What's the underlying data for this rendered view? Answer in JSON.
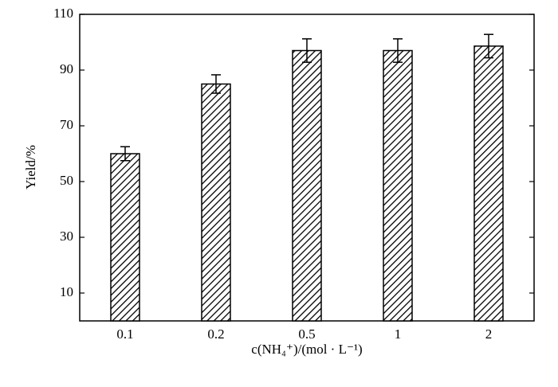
{
  "chart_data": {
    "type": "bar",
    "x_label": "c(NH₄⁺)/(mol · L⁻¹)",
    "y_label": "Yield/%",
    "categories": [
      "0.1",
      "0.2",
      "0.5",
      "1",
      "2"
    ],
    "values": [
      60,
      85,
      97,
      97,
      98.6
    ],
    "errors": [
      2.5,
      3.3,
      4.2,
      4.2,
      4.2
    ],
    "color": "#000000",
    "ylim": [
      0,
      110
    ],
    "yticks": [
      10,
      30,
      50,
      70,
      90,
      110
    ],
    "grid": false
  }
}
